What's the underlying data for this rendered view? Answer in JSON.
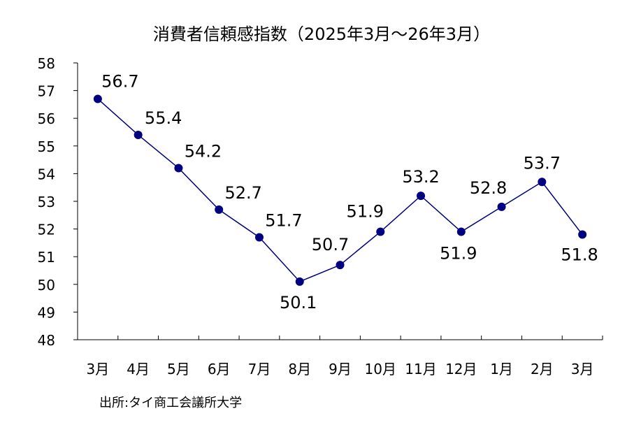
{
  "chart_data": {
    "type": "line",
    "title": "消費者信頼感指数（2025年3月～26年3月）",
    "categories": [
      "3月",
      "4月",
      "5月",
      "6月",
      "7月",
      "8月",
      "9月",
      "10月",
      "11月",
      "12月",
      "1月",
      "2月",
      "3月"
    ],
    "series": [
      {
        "values": [
          56.7,
          55.4,
          54.2,
          52.7,
          51.7,
          50.1,
          50.7,
          51.9,
          53.2,
          51.9,
          52.8,
          53.7,
          51.8
        ],
        "color": "#000080"
      }
    ],
    "data_labels": [
      "56.7",
      "55.4",
      "54.2",
      "52.7",
      "51.7",
      "50.1",
      "50.7",
      "51.9",
      "53.2",
      "51.9",
      "52.8",
      "53.7",
      "51.8"
    ],
    "ylim": [
      48,
      58
    ],
    "yticks": [
      "48",
      "49",
      "50",
      "51",
      "52",
      "53",
      "54",
      "55",
      "56",
      "57",
      "58"
    ],
    "grid": false,
    "legend": "none",
    "source": "出所:タイ商工会議所大学"
  }
}
